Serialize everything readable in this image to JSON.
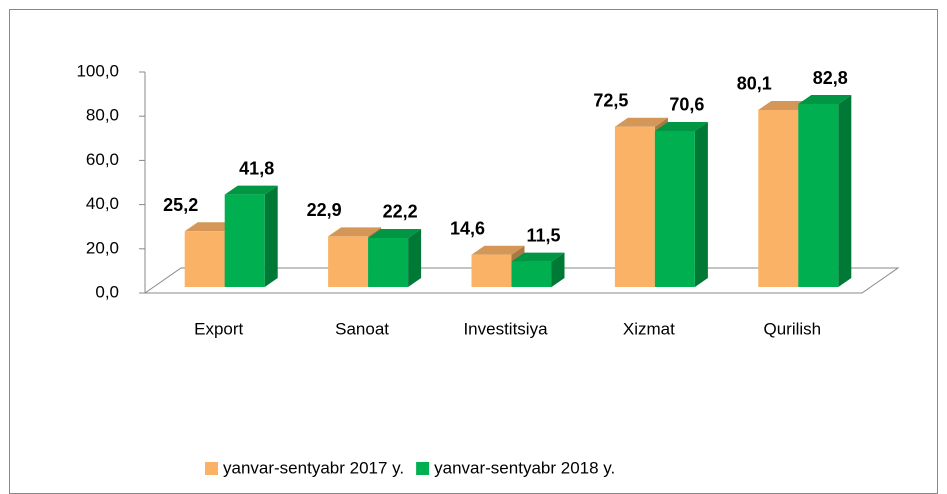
{
  "chart_data": {
    "type": "bar3d",
    "categories": [
      "Export",
      "Sanoat",
      "Investitsiya",
      "Xizmat",
      "Qurilish"
    ],
    "series": [
      {
        "name": "yanvar-sentyabr 2017 y.",
        "color": "#f9b266",
        "values": [
          25.2,
          22.9,
          14.6,
          72.5,
          80.1
        ],
        "value_labels": [
          "25,2",
          "22,9",
          "14,6",
          "72,5",
          "80,1"
        ]
      },
      {
        "name": "yanvar-sentyabr 2018 y.",
        "color": "#00b050",
        "values": [
          41.8,
          22.2,
          11.5,
          70.6,
          82.8
        ],
        "value_labels": [
          "41,8",
          "22,2",
          "11,5",
          "70,6",
          "82,8"
        ]
      }
    ],
    "ylim": [
      0,
      100
    ],
    "yticks": [
      {
        "value": 0,
        "label": "0,0"
      },
      {
        "value": 20,
        "label": "20,0"
      },
      {
        "value": 40,
        "label": "40,0"
      },
      {
        "value": 60,
        "label": "60,0"
      },
      {
        "value": 80,
        "label": "80,0"
      },
      {
        "value": 100,
        "label": "100,0"
      }
    ],
    "legend": "bottom"
  }
}
